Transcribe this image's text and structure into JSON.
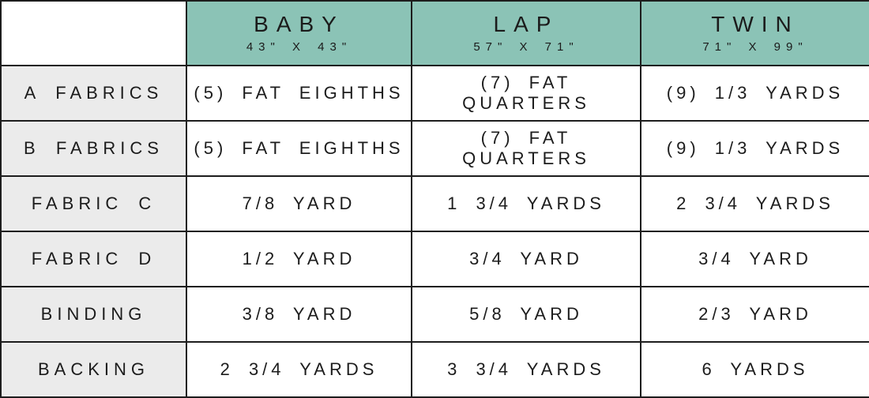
{
  "colors": {
    "header_bg": "#8bc3b6",
    "row_label_bg": "#ebebeb",
    "border": "#1d1d1d",
    "text": "#1c1c1c"
  },
  "table": {
    "columns": [
      {
        "label": "BABY",
        "size": "43\" X 43\""
      },
      {
        "label": "LAP",
        "size": "57\" X 71\""
      },
      {
        "label": "TWIN",
        "size": "71\" X 99\""
      }
    ],
    "rows": [
      {
        "label": "A FABRICS",
        "values": [
          "(5) FAT EIGHTHS",
          "(7) FAT QUARTERS",
          "(9) 1/3 YARDS"
        ]
      },
      {
        "label": "B FABRICS",
        "values": [
          "(5) FAT EIGHTHS",
          "(7) FAT QUARTERS",
          "(9) 1/3 YARDS"
        ]
      },
      {
        "label": "FABRIC C",
        "values": [
          "7/8 YARD",
          "1 3/4 YARDS",
          "2 3/4 YARDS"
        ]
      },
      {
        "label": "FABRIC D",
        "values": [
          "1/2 YARD",
          "3/4 YARD",
          "3/4 YARD"
        ]
      },
      {
        "label": "BINDING",
        "values": [
          "3/8 YARD",
          "5/8 YARD",
          "2/3 YARD"
        ]
      },
      {
        "label": "BACKING",
        "values": [
          "2 3/4 YARDS",
          "3 3/4 YARDS",
          "6 YARDS"
        ]
      }
    ]
  },
  "chart_data": {
    "type": "table",
    "title": "",
    "columns": [
      "",
      "BABY 43\" X 43\"",
      "LAP 57\" X 71\"",
      "TWIN 71\" X 99\""
    ],
    "rows": [
      [
        "A FABRICS",
        "(5) FAT EIGHTHS",
        "(7) FAT QUARTERS",
        "(9) 1/3 YARDS"
      ],
      [
        "B FABRICS",
        "(5) FAT EIGHTHS",
        "(7) FAT QUARTERS",
        "(9) 1/3 YARDS"
      ],
      [
        "FABRIC C",
        "7/8 YARD",
        "1 3/4 YARDS",
        "2 3/4 YARDS"
      ],
      [
        "FABRIC D",
        "1/2 YARD",
        "3/4 YARD",
        "3/4 YARD"
      ],
      [
        "BINDING",
        "3/8 YARD",
        "5/8 YARD",
        "2/3 YARD"
      ],
      [
        "BACKING",
        "2 3/4 YARDS",
        "3 3/4 YARDS",
        "6 YARDS"
      ]
    ]
  }
}
